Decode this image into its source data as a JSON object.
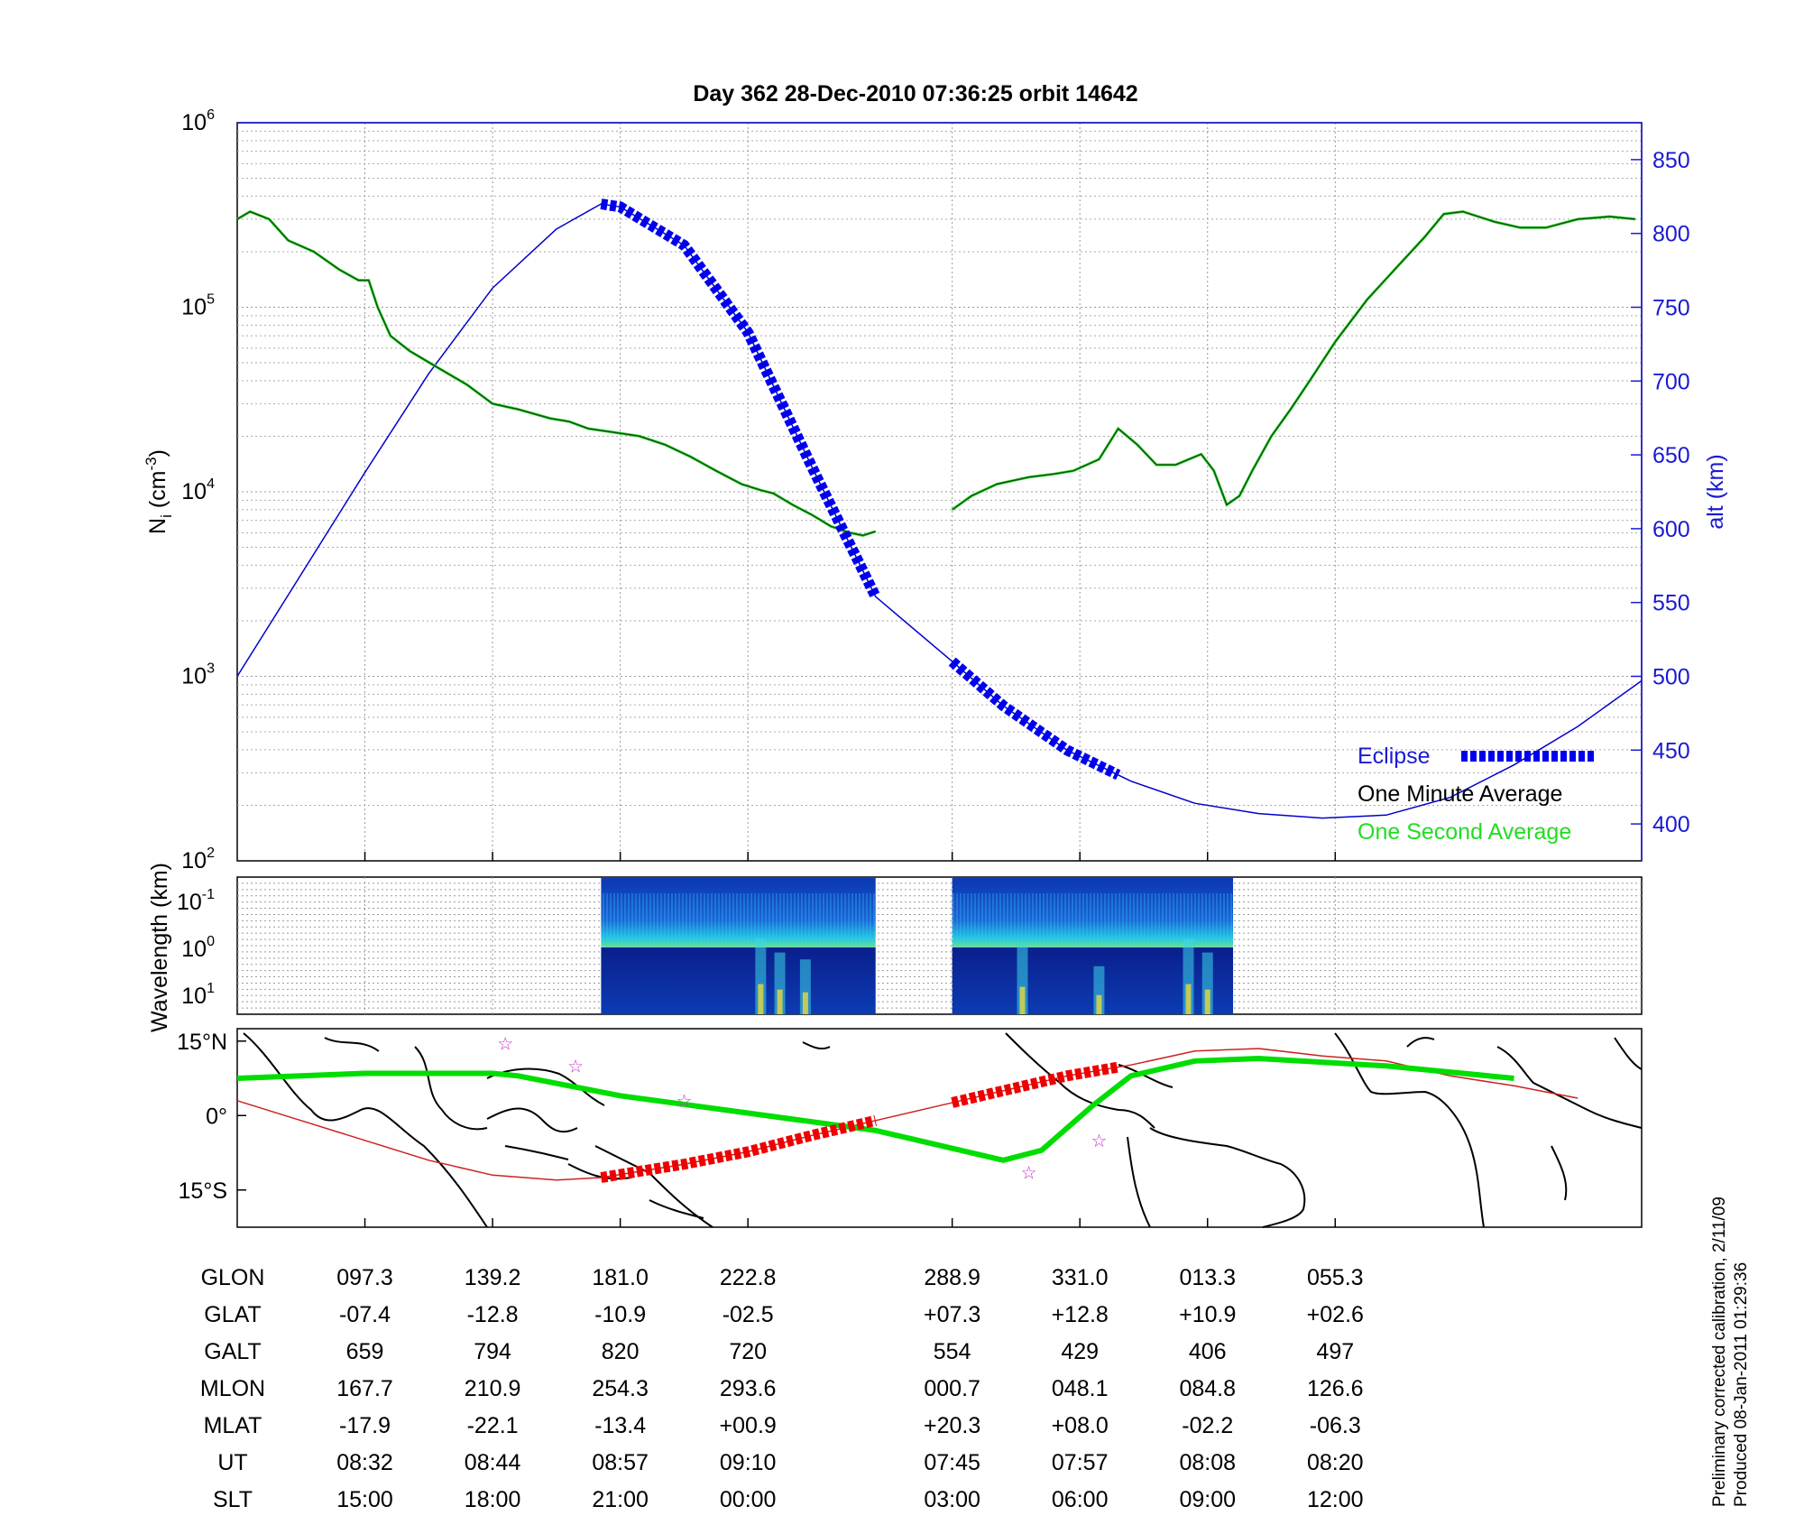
{
  "figure": {
    "title": "Day 362  28-Dec-2010 07:36:25   orbit 14642",
    "side_note_line1": "Preliminary corrected calibration, 2/11/09",
    "side_note_line2": "Produced 08-Jan-2011 01:29:36"
  },
  "chart_data": [
    {
      "id": "ion-density",
      "type": "line",
      "ylabel": "N_i (cm^-3)",
      "y_scale": "log",
      "ylim": [
        100,
        1000000
      ],
      "yticks": [
        {
          "base": "10",
          "exp": "2"
        },
        {
          "base": "10",
          "exp": "3"
        },
        {
          "base": "10",
          "exp": "4"
        },
        {
          "base": "10",
          "exp": "5"
        },
        {
          "base": "10",
          "exp": "6"
        }
      ],
      "y2label": "alt (km)",
      "y2lim": [
        375,
        875
      ],
      "y2ticks": [
        "400",
        "450",
        "500",
        "550",
        "600",
        "650",
        "700",
        "750",
        "800",
        "850"
      ],
      "x_index_range": [
        0,
        8.6
      ],
      "grid": true,
      "legend_position": "bottom-right",
      "legend": [
        {
          "label": "Eclipse",
          "color": "#0000ee",
          "style": "dashed-thick"
        },
        {
          "label": "One Minute Average",
          "color": "#000000",
          "style": "line"
        },
        {
          "label": "One Second Average",
          "color": "#22dd22",
          "style": "line"
        }
      ],
      "series": [
        {
          "name": "One Minute Average",
          "color": "#0a5a0a",
          "segments": [
            [
              [
                0,
                300000
              ],
              [
                0.1,
                330000
              ],
              [
                0.25,
                300000
              ],
              [
                0.4,
                230000
              ],
              [
                0.6,
                200000
              ],
              [
                0.8,
                160000
              ],
              [
                0.95,
                140000
              ],
              [
                1.03,
                140000
              ],
              [
                1.1,
                100000
              ],
              [
                1.2,
                70000
              ],
              [
                1.35,
                58000
              ],
              [
                1.55,
                48000
              ],
              [
                1.8,
                38000
              ],
              [
                2.0,
                30000
              ],
              [
                2.2,
                28000
              ],
              [
                2.45,
                25000
              ],
              [
                2.6,
                24000
              ],
              [
                2.75,
                22000
              ],
              [
                2.95,
                21000
              ],
              [
                3.15,
                20000
              ],
              [
                3.35,
                18000
              ],
              [
                3.55,
                15500
              ],
              [
                3.75,
                13000
              ],
              [
                3.95,
                11000
              ],
              [
                4.1,
                10200
              ],
              [
                4.2,
                9800
              ],
              [
                4.35,
                8500
              ],
              [
                4.5,
                7500
              ],
              [
                4.65,
                6500
              ],
              [
                4.8,
                6000
              ],
              [
                4.9,
                5800
              ],
              [
                5.0,
                6100
              ]
            ],
            [
              [
                5.6,
                8000
              ],
              [
                5.75,
                9500
              ],
              [
                5.95,
                11000
              ],
              [
                6.2,
                12000
              ],
              [
                6.4,
                12500
              ],
              [
                6.55,
                13000
              ],
              [
                6.75,
                15000
              ],
              [
                6.9,
                22000
              ],
              [
                7.05,
                18000
              ],
              [
                7.2,
                14000
              ],
              [
                7.35,
                14000
              ],
              [
                7.55,
                16000
              ],
              [
                7.65,
                13000
              ],
              [
                7.75,
                8500
              ],
              [
                7.85,
                9500
              ],
              [
                7.95,
                13000
              ],
              [
                8.1,
                20000
              ],
              [
                8.25,
                28000
              ],
              [
                8.4,
                40000
              ],
              [
                8.6,
                65000
              ],
              [
                8.85,
                110000
              ],
              [
                9.1,
                170000
              ],
              [
                9.3,
                240000
              ],
              [
                9.45,
                320000
              ],
              [
                9.6,
                330000
              ],
              [
                9.85,
                290000
              ],
              [
                10.05,
                270000
              ],
              [
                10.25,
                270000
              ],
              [
                10.5,
                300000
              ],
              [
                10.75,
                310000
              ],
              [
                10.95,
                300000
              ]
            ]
          ]
        },
        {
          "name": "Altitude",
          "color": "#0000cc",
          "axis": "alt",
          "points": [
            [
              0,
              500
            ],
            [
              0.5,
              569
            ],
            [
              1,
              638
            ],
            [
              1.5,
              705
            ],
            [
              2,
              763
            ],
            [
              2.5,
              803
            ],
            [
              2.85,
              820
            ],
            [
              3,
              818
            ],
            [
              3.5,
              792
            ],
            [
              4,
              733
            ],
            [
              4.5,
              642
            ],
            [
              5,
              554
            ],
            [
              5.6,
              510
            ],
            [
              6,
              480
            ],
            [
              6.5,
              450
            ],
            [
              7,
              429
            ],
            [
              7.5,
              414
            ],
            [
              8,
              407
            ],
            [
              8.5,
              404
            ],
            [
              9,
              406
            ],
            [
              9.5,
              418
            ],
            [
              10,
              440
            ],
            [
              10.5,
              466
            ],
            [
              11,
              497
            ]
          ]
        },
        {
          "name": "Eclipse",
          "color": "#0000ee",
          "axis": "alt",
          "segments": [
            [
              2.85,
              5.0
            ],
            [
              5.6,
              6.9
            ]
          ]
        }
      ]
    },
    {
      "id": "wavelength-spectrogram",
      "type": "heatmap",
      "ylabel": "Wavelength (km)",
      "yticks": [
        {
          "base": "10",
          "exp": "-1"
        },
        {
          "base": "10",
          "exp": "0"
        },
        {
          "base": "10",
          "exp": "1"
        }
      ],
      "data_blocks": [
        [
          2.85,
          5.0
        ],
        [
          5.6,
          7.8
        ]
      ],
      "colormap": "jet"
    },
    {
      "id": "ground-track-map",
      "type": "line",
      "yticks": [
        "15°N",
        "0°",
        "15°S"
      ],
      "ylim": [
        -22.5,
        17.5
      ],
      "series": [
        {
          "name": "Magnetic equator",
          "color": "#00dd00",
          "points": [
            [
              0,
              7.5
            ],
            [
              1,
              8.5
            ],
            [
              2,
              8.5
            ],
            [
              2.2,
              8.0
            ],
            [
              3,
              4.0
            ],
            [
              4,
              0.5
            ],
            [
              5,
              -3.0
            ],
            [
              6,
              -9.0
            ],
            [
              6.3,
              -7.0
            ],
            [
              6.7,
              2.0
            ],
            [
              7,
              8.0
            ],
            [
              7.5,
              11.0
            ],
            [
              8,
              11.5
            ],
            [
              9,
              10.0
            ],
            [
              10,
              7.5
            ]
          ]
        },
        {
          "name": "Ground track",
          "color": "#cc2222",
          "points": [
            [
              0,
              3.0
            ],
            [
              0.5,
              -1.0
            ],
            [
              1,
              -5.0
            ],
            [
              1.5,
              -9.0
            ],
            [
              2,
              -12.0
            ],
            [
              2.5,
              -13.0
            ],
            [
              2.85,
              -12.5
            ],
            [
              3.5,
              -9.8
            ],
            [
              4,
              -7.3
            ],
            [
              4.5,
              -4.0
            ],
            [
              5,
              -1.0
            ],
            [
              5.5,
              2.0
            ],
            [
              6,
              5.0
            ],
            [
              6.5,
              8.0
            ],
            [
              7,
              10.2
            ],
            [
              7.5,
              13.0
            ],
            [
              8,
              13.5
            ],
            [
              8.5,
              12.0
            ],
            [
              9,
              11.0
            ],
            [
              9.5,
              8.0
            ],
            [
              10,
              6.0
            ],
            [
              10.5,
              3.5
            ]
          ]
        },
        {
          "name": "Eclipse",
          "color": "#ee0000",
          "segments": [
            [
              2.85,
              5.0
            ],
            [
              5.6,
              6.9
            ]
          ]
        }
      ],
      "markers": [
        [
          2.1,
          14.5
        ],
        [
          2.65,
          10.0
        ],
        [
          3.5,
          3.0
        ],
        [
          6.2,
          -11.5
        ],
        [
          6.75,
          -5.0
        ]
      ]
    }
  ],
  "table": {
    "columns_index": [
      1,
      2,
      3,
      4,
      5.6,
      6.6,
      7.6,
      8.6
    ],
    "rows": [
      {
        "label": "GLON",
        "values": [
          "097.3",
          "139.2",
          "181.0",
          "222.8",
          "288.9",
          "331.0",
          "013.3",
          "055.3"
        ]
      },
      {
        "label": "GLAT",
        "values": [
          "-07.4",
          "-12.8",
          "-10.9",
          "-02.5",
          "+07.3",
          "+12.8",
          "+10.9",
          "+02.6"
        ]
      },
      {
        "label": "GALT",
        "values": [
          "659",
          "794",
          "820",
          "720",
          "554",
          "429",
          "406",
          "497"
        ]
      },
      {
        "label": "MLON",
        "values": [
          "167.7",
          "210.9",
          "254.3",
          "293.6",
          "000.7",
          "048.1",
          "084.8",
          "126.6"
        ]
      },
      {
        "label": "MLAT",
        "values": [
          "-17.9",
          "-22.1",
          "-13.4",
          "+00.9",
          "+20.3",
          "+08.0",
          "-02.2",
          "-06.3"
        ]
      },
      {
        "label": "UT",
        "values": [
          "08:32",
          "08:44",
          "08:57",
          "09:10",
          "07:45",
          "07:57",
          "08:08",
          "08:20"
        ]
      },
      {
        "label": "SLT",
        "values": [
          "15:00",
          "18:00",
          "21:00",
          "00:00",
          "03:00",
          "06:00",
          "09:00",
          "12:00"
        ]
      }
    ]
  }
}
